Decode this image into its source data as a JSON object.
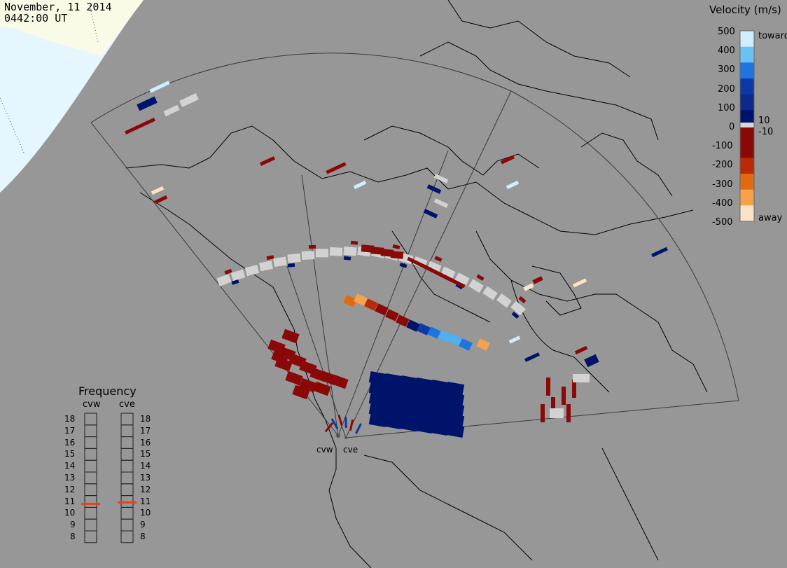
{
  "header": {
    "date": "November, 11 2014",
    "time": "0442:00 UT"
  },
  "velocity_scale": {
    "title": "Velocity (m/s)",
    "ticks": [
      "500",
      "400",
      "300",
      "200",
      "100",
      "0",
      "-100",
      "-200",
      "-300",
      "-400",
      "-500"
    ],
    "inner_ticks": [
      "10",
      "-10"
    ],
    "toward_label": "toward",
    "away_label": "away",
    "colors": [
      "#fde2c8",
      "#f7a24a",
      "#e06a10",
      "#b82a0a",
      "#8a0808",
      "#ffffff",
      "#00136b",
      "#0b3aa6",
      "#1e74e0",
      "#4fb0f2",
      "#cfeeff"
    ]
  },
  "frequency_panel": {
    "title": "Frequency",
    "radars": [
      "cvw",
      "cve"
    ],
    "ticks": [
      "18",
      "17",
      "16",
      "15",
      "14",
      "13",
      "12",
      "11",
      "10",
      "9",
      "8"
    ],
    "marker_color": "#e8401a"
  },
  "radar_sites": [
    "cvw",
    "cve"
  ],
  "colors": {
    "background": "#979797",
    "daylight": "#fafbe6",
    "daylight_ocean": "#e6f6ff",
    "ground_scatter": "#d2d2d2",
    "away_dark": "#8a0808",
    "toward_dark": "#00136b"
  }
}
